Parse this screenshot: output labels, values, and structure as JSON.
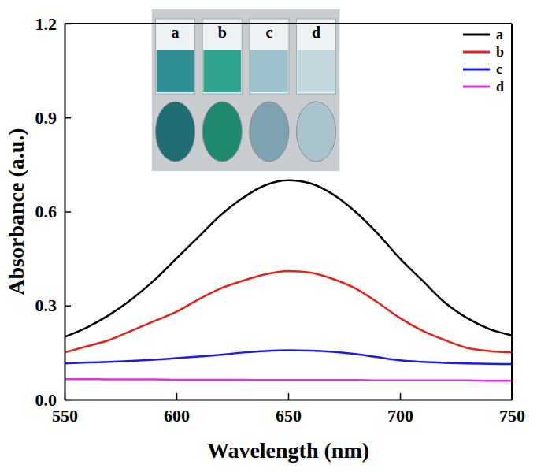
{
  "chart_data": {
    "type": "line",
    "x_label": "Wavelength (nm)",
    "y_label": "Absorbance (a.u.)",
    "x": [
      550,
      560,
      570,
      580,
      590,
      600,
      610,
      620,
      630,
      640,
      650,
      660,
      670,
      680,
      690,
      700,
      710,
      720,
      730,
      740,
      750
    ],
    "series": [
      {
        "name": "a",
        "color": "#000000",
        "values": [
          0.2,
          0.23,
          0.27,
          0.32,
          0.38,
          0.45,
          0.52,
          0.59,
          0.645,
          0.685,
          0.7,
          0.69,
          0.655,
          0.6,
          0.53,
          0.45,
          0.38,
          0.31,
          0.26,
          0.225,
          0.205
        ]
      },
      {
        "name": "b",
        "color": "#e8201c",
        "values": [
          0.15,
          0.17,
          0.19,
          0.22,
          0.25,
          0.28,
          0.32,
          0.355,
          0.38,
          0.4,
          0.41,
          0.405,
          0.385,
          0.355,
          0.31,
          0.26,
          0.22,
          0.19,
          0.165,
          0.155,
          0.15
        ]
      },
      {
        "name": "c",
        "color": "#1a1aee",
        "values": [
          0.115,
          0.118,
          0.12,
          0.123,
          0.127,
          0.132,
          0.137,
          0.143,
          0.15,
          0.155,
          0.157,
          0.156,
          0.152,
          0.145,
          0.135,
          0.125,
          0.12,
          0.117,
          0.115,
          0.114,
          0.113
        ]
      },
      {
        "name": "d",
        "color": "#e030e0",
        "values": [
          0.065,
          0.065,
          0.064,
          0.064,
          0.064,
          0.063,
          0.063,
          0.063,
          0.063,
          0.062,
          0.062,
          0.062,
          0.062,
          0.062,
          0.061,
          0.061,
          0.061,
          0.061,
          0.061,
          0.06,
          0.06
        ]
      }
    ],
    "xlim": [
      550,
      750
    ],
    "xticks": [
      550,
      600,
      650,
      700,
      750
    ],
    "ylim": [
      0,
      1.2
    ],
    "yticks": [
      {
        "value": 0,
        "label": "0.0"
      },
      0.3,
      0.6,
      0.9,
      1.2
    ],
    "legend": "upper right",
    "annotations": [
      "a",
      "b",
      "c",
      "d"
    ]
  }
}
